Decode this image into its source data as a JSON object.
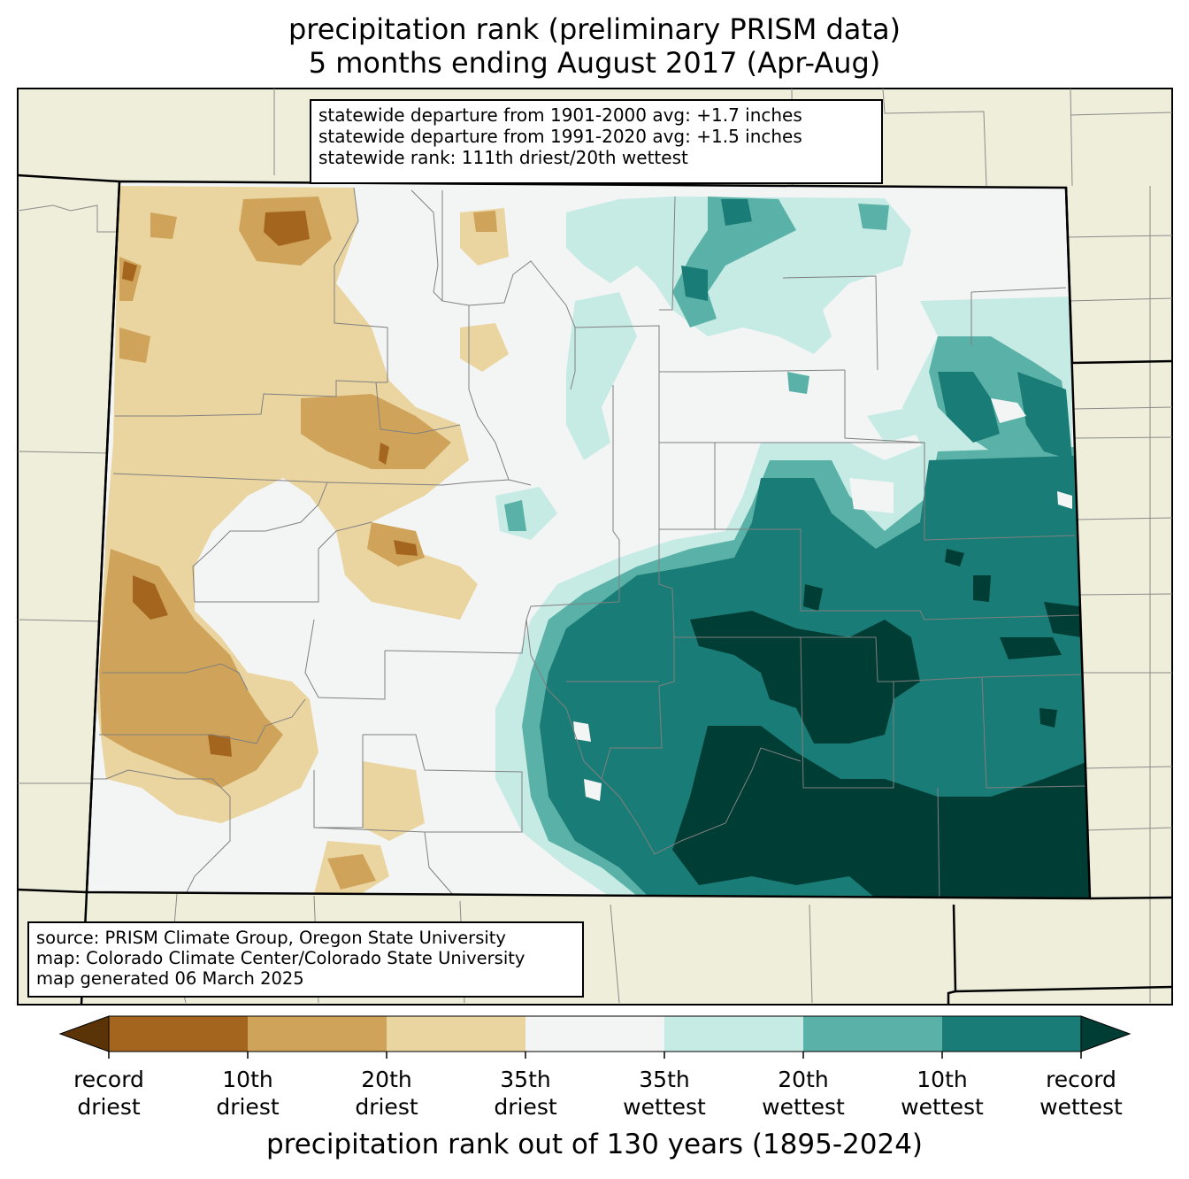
{
  "title": {
    "line1": "precipitation rank (preliminary PRISM data)",
    "line2": "5 months ending August 2017 (Apr-Aug)"
  },
  "stats_box": {
    "line1": "statewide departure from 1901-2000 avg: +1.7 inches",
    "line2": "statewide departure from 1991-2020 avg: +1.5 inches",
    "line3": "statewide rank: 111th driest/20th wettest"
  },
  "source_box": {
    "line1": "source: PRISM Climate Group, Oregon State University",
    "line2": "map: Colorado Climate Center/Colorado State University",
    "line3": "map generated 06 March 2025"
  },
  "colorbar": {
    "title": "precipitation rank out of 130 years (1895-2024)",
    "colors": [
      "#5a3406",
      "#a4661f",
      "#d0a35a",
      "#ead5a0",
      "#f3f4f4",
      "#c6eae4",
      "#5ab1a7",
      "#1a7c76",
      "#003d35"
    ],
    "labels": [
      {
        "top": "record",
        "bottom": "driest"
      },
      {
        "top": "10th",
        "bottom": "driest"
      },
      {
        "top": "20th",
        "bottom": "driest"
      },
      {
        "top": "35th",
        "bottom": "driest"
      },
      {
        "top": "35th",
        "bottom": "wettest"
      },
      {
        "top": "20th",
        "bottom": "wettest"
      },
      {
        "top": "10th",
        "bottom": "wettest"
      },
      {
        "top": "record",
        "bottom": "wettest"
      }
    ]
  },
  "map_colors": {
    "background": "#efeedb",
    "neutral": "#f3f4f4",
    "dry_35": "#ead5a0",
    "dry_20": "#d0a35a",
    "dry_10": "#a4661f",
    "wet_35": "#c6eae4",
    "wet_20": "#5ab1a7",
    "wet_10": "#1a7c76",
    "wet_record": "#003d35",
    "county_lines": "#8a8a8a",
    "state_lines": "#000000"
  }
}
